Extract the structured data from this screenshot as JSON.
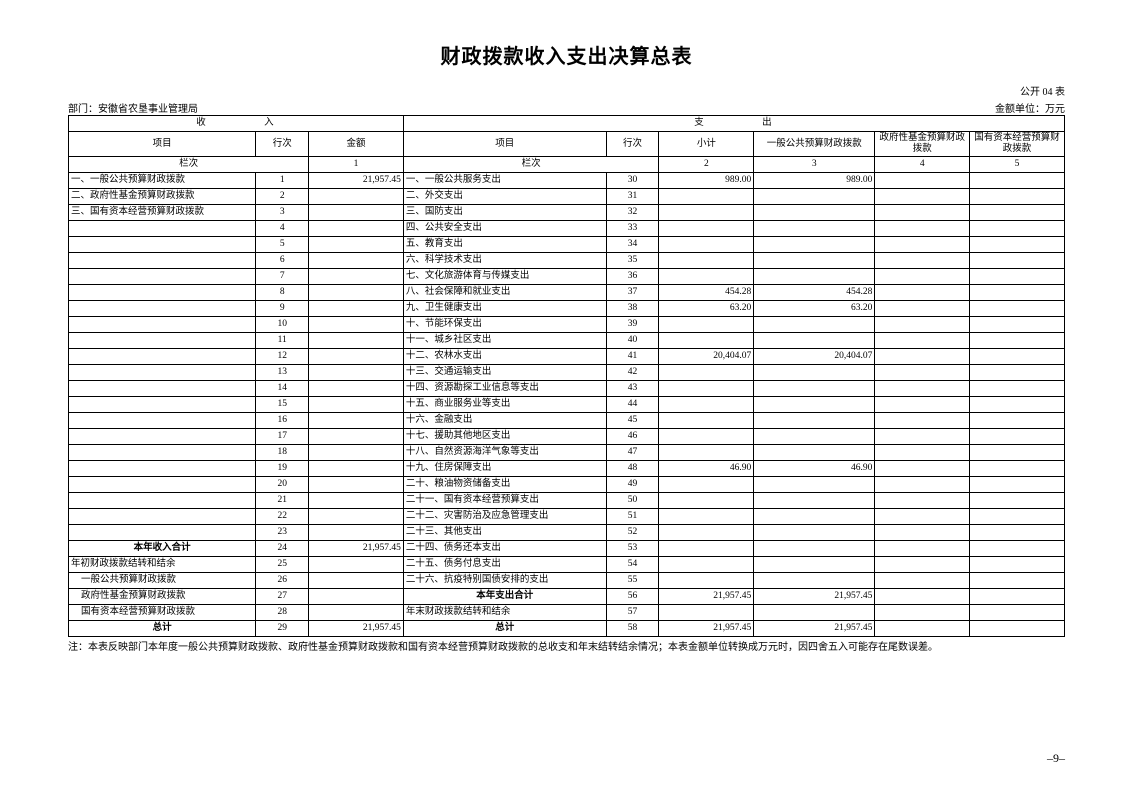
{
  "title": "财政拨款收入支出决算总表",
  "form_no": "公开 04 表",
  "dept_label": "部门：",
  "dept_name": "安徽省农垦事业管理局",
  "unit_label": "金额单位：万元",
  "headers": {
    "income": "收    入",
    "expense": "支    出",
    "item": "项目",
    "row": "行次",
    "amount": "金额",
    "subtotal": "小计",
    "general": "一般公共预算财政拨款",
    "gov_fund": "政府性基金预算财政拨款",
    "state_cap": "国有资本经营预算财政拨款",
    "col_label": "栏次",
    "col_nums": [
      "1",
      "2",
      "3",
      "4",
      "5"
    ]
  },
  "rows": [
    {
      "in_item": "一、一般公共预算财政拨款",
      "in_row": "1",
      "in_amt": "21,957.45",
      "out_item": "一、一般公共服务支出",
      "out_row": "30",
      "sub": "989.00",
      "gen": "989.00",
      "gov": "",
      "st": ""
    },
    {
      "in_item": "二、政府性基金预算财政拨款",
      "in_row": "2",
      "in_amt": "",
      "out_item": "二、外交支出",
      "out_row": "31",
      "sub": "",
      "gen": "",
      "gov": "",
      "st": ""
    },
    {
      "in_item": "三、国有资本经营预算财政拨款",
      "in_row": "3",
      "in_amt": "",
      "out_item": "三、国防支出",
      "out_row": "32",
      "sub": "",
      "gen": "",
      "gov": "",
      "st": ""
    },
    {
      "in_item": "",
      "in_row": "4",
      "in_amt": "",
      "out_item": "四、公共安全支出",
      "out_row": "33",
      "sub": "",
      "gen": "",
      "gov": "",
      "st": ""
    },
    {
      "in_item": "",
      "in_row": "5",
      "in_amt": "",
      "out_item": "五、教育支出",
      "out_row": "34",
      "sub": "",
      "gen": "",
      "gov": "",
      "st": ""
    },
    {
      "in_item": "",
      "in_row": "6",
      "in_amt": "",
      "out_item": "六、科学技术支出",
      "out_row": "35",
      "sub": "",
      "gen": "",
      "gov": "",
      "st": ""
    },
    {
      "in_item": "",
      "in_row": "7",
      "in_amt": "",
      "out_item": "七、文化旅游体育与传媒支出",
      "out_row": "36",
      "sub": "",
      "gen": "",
      "gov": "",
      "st": ""
    },
    {
      "in_item": "",
      "in_row": "8",
      "in_amt": "",
      "out_item": "八、社会保障和就业支出",
      "out_row": "37",
      "sub": "454.28",
      "gen": "454.28",
      "gov": "",
      "st": ""
    },
    {
      "in_item": "",
      "in_row": "9",
      "in_amt": "",
      "out_item": "九、卫生健康支出",
      "out_row": "38",
      "sub": "63.20",
      "gen": "63.20",
      "gov": "",
      "st": ""
    },
    {
      "in_item": "",
      "in_row": "10",
      "in_amt": "",
      "out_item": "十、节能环保支出",
      "out_row": "39",
      "sub": "",
      "gen": "",
      "gov": "",
      "st": ""
    },
    {
      "in_item": "",
      "in_row": "11",
      "in_amt": "",
      "out_item": "十一、城乡社区支出",
      "out_row": "40",
      "sub": "",
      "gen": "",
      "gov": "",
      "st": ""
    },
    {
      "in_item": "",
      "in_row": "12",
      "in_amt": "",
      "out_item": "十二、农林水支出",
      "out_row": "41",
      "sub": "20,404.07",
      "gen": "20,404.07",
      "gov": "",
      "st": ""
    },
    {
      "in_item": "",
      "in_row": "13",
      "in_amt": "",
      "out_item": "十三、交通运输支出",
      "out_row": "42",
      "sub": "",
      "gen": "",
      "gov": "",
      "st": ""
    },
    {
      "in_item": "",
      "in_row": "14",
      "in_amt": "",
      "out_item": "十四、资源勘探工业信息等支出",
      "out_row": "43",
      "sub": "",
      "gen": "",
      "gov": "",
      "st": ""
    },
    {
      "in_item": "",
      "in_row": "15",
      "in_amt": "",
      "out_item": "十五、商业服务业等支出",
      "out_row": "44",
      "sub": "",
      "gen": "",
      "gov": "",
      "st": ""
    },
    {
      "in_item": "",
      "in_row": "16",
      "in_amt": "",
      "out_item": "十六、金融支出",
      "out_row": "45",
      "sub": "",
      "gen": "",
      "gov": "",
      "st": ""
    },
    {
      "in_item": "",
      "in_row": "17",
      "in_amt": "",
      "out_item": "十七、援助其他地区支出",
      "out_row": "46",
      "sub": "",
      "gen": "",
      "gov": "",
      "st": ""
    },
    {
      "in_item": "",
      "in_row": "18",
      "in_amt": "",
      "out_item": "十八、自然资源海洋气象等支出",
      "out_row": "47",
      "sub": "",
      "gen": "",
      "gov": "",
      "st": ""
    },
    {
      "in_item": "",
      "in_row": "19",
      "in_amt": "",
      "out_item": "十九、住房保障支出",
      "out_row": "48",
      "sub": "46.90",
      "gen": "46.90",
      "gov": "",
      "st": ""
    },
    {
      "in_item": "",
      "in_row": "20",
      "in_amt": "",
      "out_item": "二十、粮油物资储备支出",
      "out_row": "49",
      "sub": "",
      "gen": "",
      "gov": "",
      "st": ""
    },
    {
      "in_item": "",
      "in_row": "21",
      "in_amt": "",
      "out_item": "二十一、国有资本经营预算支出",
      "out_row": "50",
      "sub": "",
      "gen": "",
      "gov": "",
      "st": ""
    },
    {
      "in_item": "",
      "in_row": "22",
      "in_amt": "",
      "out_item": "二十二、灾害防治及应急管理支出",
      "out_row": "51",
      "sub": "",
      "gen": "",
      "gov": "",
      "st": ""
    },
    {
      "in_item": "",
      "in_row": "23",
      "in_amt": "",
      "out_item": "二十三、其他支出",
      "out_row": "52",
      "sub": "",
      "gen": "",
      "gov": "",
      "st": ""
    },
    {
      "in_item": "本年收入合计",
      "in_row": "24",
      "in_amt": "21,957.45",
      "out_item": "二十四、债务还本支出",
      "out_row": "53",
      "sub": "",
      "gen": "",
      "gov": "",
      "st": "",
      "in_bold": true,
      "in_center": true
    },
    {
      "in_item": "年初财政拨款结转和结余",
      "in_row": "25",
      "in_amt": "",
      "out_item": "二十五、债务付息支出",
      "out_row": "54",
      "sub": "",
      "gen": "",
      "gov": "",
      "st": ""
    },
    {
      "in_item": "一般公共预算财政拨款",
      "in_row": "26",
      "in_amt": "",
      "out_item": "二十六、抗疫特别国债安排的支出",
      "out_row": "55",
      "sub": "",
      "gen": "",
      "gov": "",
      "st": "",
      "in_indent": true
    },
    {
      "in_item": "政府性基金预算财政拨款",
      "in_row": "27",
      "in_amt": "",
      "out_item": "本年支出合计",
      "out_row": "56",
      "sub": "21,957.45",
      "gen": "21,957.45",
      "gov": "",
      "st": "",
      "in_indent": true,
      "out_bold": true,
      "out_center": true
    },
    {
      "in_item": "国有资本经营预算财政拨款",
      "in_row": "28",
      "in_amt": "",
      "out_item": "年末财政拨款结转和结余",
      "out_row": "57",
      "sub": "",
      "gen": "",
      "gov": "",
      "st": "",
      "in_indent": true
    },
    {
      "in_item": "总计",
      "in_row": "29",
      "in_amt": "21,957.45",
      "out_item": "总计",
      "out_row": "58",
      "sub": "21,957.45",
      "gen": "21,957.45",
      "gov": "",
      "st": "",
      "in_bold": true,
      "in_center": true,
      "out_bold": true,
      "out_center": true
    }
  ],
  "note": "注：本表反映部门本年度一般公共预算财政拨款、政府性基金预算财政拨款和国有资本经营预算财政拨款的总收支和年末结转结余情况；本表金额单位转换成万元时，因四舍五入可能存在尾数误差。",
  "page_num": "–9–",
  "colors": {
    "border": "#000000",
    "text": "#000000",
    "background": "#ffffff"
  }
}
